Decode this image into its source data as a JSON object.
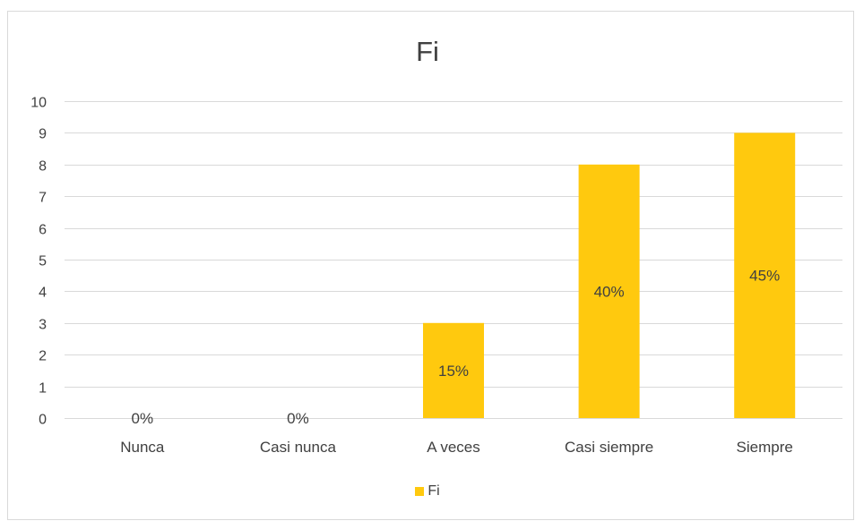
{
  "colors": {
    "bar": "#ffc90e",
    "grid": "#d9d9d9",
    "text": "#404040",
    "label_text": "#404040"
  },
  "chart_data": {
    "type": "bar",
    "title": "Fi",
    "categories": [
      "Nunca",
      "Casi nunca",
      "A veces",
      "Casi siempre",
      "Siempre"
    ],
    "series": [
      {
        "name": "Fi",
        "values": [
          0,
          0,
          3,
          8,
          9
        ]
      }
    ],
    "data_labels": [
      "0%",
      "0%",
      "15%",
      "40%",
      "45%"
    ],
    "ylim": [
      0,
      10
    ],
    "yticks": [
      0,
      1,
      2,
      3,
      4,
      5,
      6,
      7,
      8,
      9,
      10
    ],
    "grid": true,
    "legend": "bottom"
  }
}
